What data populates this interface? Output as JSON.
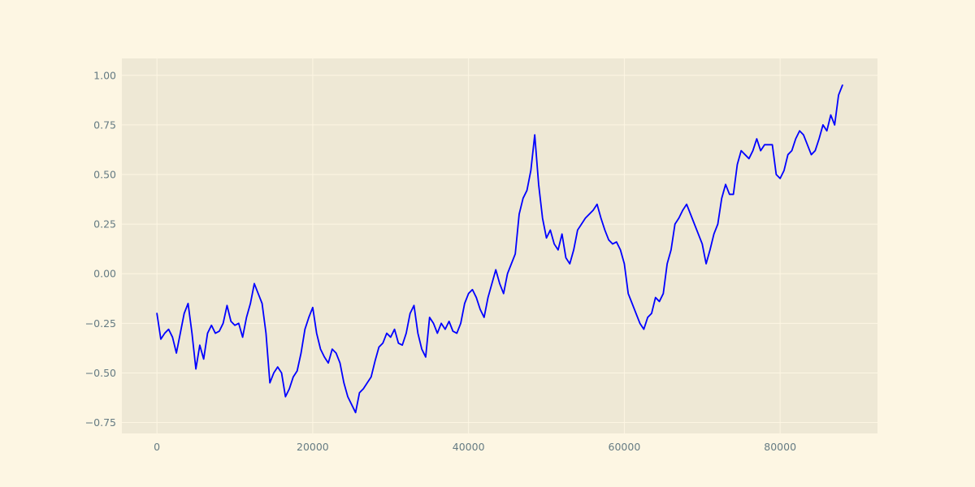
{
  "chart_data": {
    "type": "line",
    "title": "",
    "xlabel": "",
    "ylabel": "",
    "xlim": [
      -4500,
      92500
    ],
    "ylim": [
      -0.805,
      1.085
    ],
    "grid": true,
    "legend": "none",
    "x_ticks": [
      0,
      20000,
      40000,
      60000,
      80000
    ],
    "x_tick_labels": [
      "0",
      "20000",
      "40000",
      "60000",
      "80000"
    ],
    "y_ticks": [
      -0.75,
      -0.5,
      -0.25,
      0.0,
      0.25,
      0.5,
      0.75,
      1.0
    ],
    "y_tick_labels": [
      "−0.75",
      "−0.50",
      "−0.25",
      "0.00",
      "0.25",
      "0.50",
      "0.75",
      "1.00"
    ],
    "colors": {
      "figure_background": "#fdf6e3",
      "plot_background": "#eee8d5",
      "grid": "#fdf6e3",
      "line": "#0000ff",
      "tick_text": "#657b83"
    },
    "series": [
      {
        "x": [
          0,
          500,
          1000,
          1500,
          2000,
          2500,
          3000,
          3500,
          4000,
          4500,
          5000,
          5500,
          6000,
          6500,
          7000,
          7500,
          8000,
          8500,
          9000,
          9500,
          10000,
          10500,
          11000,
          11500,
          12000,
          12500,
          13000,
          13500,
          14000,
          14500,
          15000,
          15500,
          16000,
          16500,
          17000,
          17500,
          18000,
          18500,
          19000,
          19500,
          20000,
          20500,
          21000,
          21500,
          22000,
          22500,
          23000,
          23500,
          24000,
          24500,
          25000,
          25500,
          26000,
          26500,
          27000,
          27500,
          28000,
          28500,
          29000,
          29500,
          30000,
          30500,
          31000,
          31500,
          32000,
          32500,
          33000,
          33500,
          34000,
          34500,
          35000,
          35500,
          36000,
          36500,
          37000,
          37500,
          38000,
          38500,
          39000,
          39500,
          40000,
          40500,
          41000,
          41500,
          42000,
          42500,
          43000,
          43500,
          44000,
          44500,
          45000,
          45500,
          46000,
          46500,
          47000,
          47500,
          48000,
          48500,
          49000,
          49500,
          50000,
          50500,
          51000,
          51500,
          52000,
          52500,
          53000,
          53500,
          54000,
          54500,
          55000,
          55500,
          56000,
          56500,
          57000,
          57500,
          58000,
          58500,
          59000,
          59500,
          60000,
          60500,
          61000,
          61500,
          62000,
          62500,
          63000,
          63500,
          64000,
          64500,
          65000,
          65500,
          66000,
          66500,
          67000,
          67500,
          68000,
          68500,
          69000,
          69500,
          70000,
          70500,
          71000,
          71500,
          72000,
          72500,
          73000,
          73500,
          74000,
          74500,
          75000,
          75500,
          76000,
          76500,
          77000,
          77500,
          78000,
          78500,
          79000,
          79500,
          80000,
          80500,
          81000,
          81500,
          82000,
          82500,
          83000,
          83500,
          84000,
          84500,
          85000,
          85500,
          86000,
          86500,
          87000,
          87500,
          88000
        ],
        "y": [
          -0.2,
          -0.33,
          -0.3,
          -0.28,
          -0.32,
          -0.4,
          -0.3,
          -0.2,
          -0.15,
          -0.3,
          -0.48,
          -0.36,
          -0.43,
          -0.3,
          -0.26,
          -0.3,
          -0.29,
          -0.25,
          -0.16,
          -0.24,
          -0.26,
          -0.25,
          -0.32,
          -0.22,
          -0.15,
          -0.05,
          -0.1,
          -0.15,
          -0.3,
          -0.55,
          -0.5,
          -0.47,
          -0.5,
          -0.62,
          -0.58,
          -0.52,
          -0.49,
          -0.4,
          -0.28,
          -0.22,
          -0.17,
          -0.3,
          -0.38,
          -0.42,
          -0.45,
          -0.38,
          -0.4,
          -0.45,
          -0.55,
          -0.62,
          -0.66,
          -0.7,
          -0.6,
          -0.58,
          -0.55,
          -0.52,
          -0.44,
          -0.37,
          -0.35,
          -0.3,
          -0.32,
          -0.28,
          -0.35,
          -0.36,
          -0.3,
          -0.2,
          -0.16,
          -0.3,
          -0.38,
          -0.42,
          -0.22,
          -0.25,
          -0.3,
          -0.25,
          -0.28,
          -0.24,
          -0.29,
          -0.3,
          -0.25,
          -0.15,
          -0.1,
          -0.08,
          -0.12,
          -0.18,
          -0.22,
          -0.12,
          -0.05,
          0.02,
          -0.05,
          -0.1,
          0.0,
          0.05,
          0.1,
          0.3,
          0.38,
          0.42,
          0.52,
          0.7,
          0.45,
          0.28,
          0.18,
          0.22,
          0.15,
          0.12,
          0.2,
          0.08,
          0.05,
          0.12,
          0.22,
          0.25,
          0.28,
          0.3,
          0.32,
          0.35,
          0.28,
          0.22,
          0.17,
          0.15,
          0.16,
          0.12,
          0.05,
          -0.1,
          -0.15,
          -0.2,
          -0.25,
          -0.28,
          -0.22,
          -0.2,
          -0.12,
          -0.14,
          -0.1,
          0.05,
          0.12,
          0.25,
          0.28,
          0.32,
          0.35,
          0.3,
          0.25,
          0.2,
          0.15,
          0.05,
          0.12,
          0.2,
          0.25,
          0.38,
          0.45,
          0.4,
          0.4,
          0.55,
          0.62,
          0.6,
          0.58,
          0.62,
          0.68,
          0.62,
          0.65,
          0.65,
          0.65,
          0.5,
          0.48,
          0.52,
          0.6,
          0.62,
          0.68,
          0.72,
          0.7,
          0.65,
          0.6,
          0.62,
          0.68,
          0.75,
          0.72,
          0.8,
          0.75,
          0.9,
          0.95
        ]
      }
    ]
  }
}
